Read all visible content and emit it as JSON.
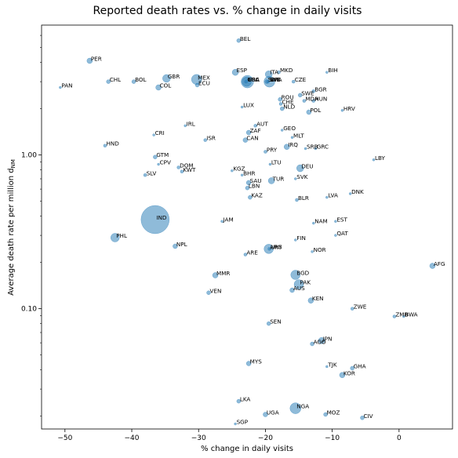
{
  "chart_data": {
    "type": "scatter",
    "title": "Reported death rates vs. % change in daily visits",
    "xlabel": "% change in daily visits",
    "ylabel": "Average death rate per million d_NM",
    "xscale": "linear",
    "yscale": "log",
    "xlim": [
      -53.5,
      8
    ],
    "ylim": [
      0.0165,
      7.0
    ],
    "xticks": [
      -50,
      -40,
      -30,
      -20,
      -10,
      0
    ],
    "xtick_labels": [
      "−50",
      "−40",
      "−30",
      "−20",
      "−10",
      "0"
    ],
    "yticks": [
      1.0,
      0.1
    ],
    "ytick_labels": [
      "1.00",
      "0.10"
    ],
    "grid": false,
    "marker_color": "#1f77b4",
    "marker_alpha": 0.5,
    "points": [
      {
        "label": "BEL",
        "x": -24.0,
        "y": 5.55,
        "size": 2.5
      },
      {
        "label": "PER",
        "x": -46.3,
        "y": 4.1,
        "size": 3.5
      },
      {
        "label": "BIH",
        "x": -10.8,
        "y": 3.45,
        "size": 1.5
      },
      {
        "label": "ESP",
        "x": -24.5,
        "y": 3.45,
        "size": 4
      },
      {
        "label": "ITA",
        "x": -19.5,
        "y": 3.35,
        "size": 4.5
      },
      {
        "label": "MKD",
        "x": -18.0,
        "y": 3.45,
        "size": 2
      },
      {
        "label": "GBR",
        "x": -34.8,
        "y": 3.15,
        "size": 5
      },
      {
        "label": "MEX",
        "x": -30.3,
        "y": 3.1,
        "size": 6.5
      },
      {
        "label": "CHL",
        "x": -43.5,
        "y": 3.0,
        "size": 2.5
      },
      {
        "label": "BOL",
        "x": -39.7,
        "y": 3.0,
        "size": 2.5
      },
      {
        "label": "FRA",
        "x": -22.7,
        "y": 3.0,
        "size": 8
      },
      {
        "label": "USA",
        "x": -22.8,
        "y": 3.0,
        "size": 6
      },
      {
        "label": "GRC",
        "x": -22.9,
        "y": 3.0,
        "size": 2
      },
      {
        "label": "SWE",
        "x": -19.8,
        "y": 3.0,
        "size": 2.5
      },
      {
        "label": "SYR",
        "x": -19.6,
        "y": 3.0,
        "size": 2
      },
      {
        "label": "BRA",
        "x": -19.4,
        "y": 3.0,
        "size": 7
      },
      {
        "label": "CZE",
        "x": -15.8,
        "y": 3.0,
        "size": 2
      },
      {
        "label": "ECU",
        "x": -30.2,
        "y": 2.85,
        "size": 2.5
      },
      {
        "label": "PAN",
        "x": -50.7,
        "y": 2.75,
        "size": 1.5
      },
      {
        "label": "COL",
        "x": -36.0,
        "y": 2.75,
        "size": 3.5
      },
      {
        "label": "BGR",
        "x": -12.8,
        "y": 2.6,
        "size": 2
      },
      {
        "label": "SWE",
        "x": -14.8,
        "y": 2.45,
        "size": 2.5
      },
      {
        "label": "ROU",
        "x": -17.8,
        "y": 2.3,
        "size": 2.5
      },
      {
        "label": "MDA",
        "x": -14.2,
        "y": 2.25,
        "size": 2
      },
      {
        "label": "HUN",
        "x": -12.8,
        "y": 2.25,
        "size": 2
      },
      {
        "label": "CHE",
        "x": -17.7,
        "y": 2.15,
        "size": 2
      },
      {
        "label": "LUX",
        "x": -23.5,
        "y": 2.05,
        "size": 1.5
      },
      {
        "label": "NLD",
        "x": -17.5,
        "y": 2.0,
        "size": 2.5
      },
      {
        "label": "POL",
        "x": -13.5,
        "y": 1.9,
        "size": 3
      },
      {
        "label": "HRV",
        "x": -8.5,
        "y": 1.95,
        "size": 1.5
      },
      {
        "label": "IRL",
        "x": -32.0,
        "y": 1.55,
        "size": 1.5
      },
      {
        "label": "AUT",
        "x": -21.5,
        "y": 1.55,
        "size": 2
      },
      {
        "label": "GEO",
        "x": -17.5,
        "y": 1.45,
        "size": 1.5
      },
      {
        "label": "ZAF",
        "x": -22.5,
        "y": 1.4,
        "size": 3
      },
      {
        "label": "CRI",
        "x": -36.7,
        "y": 1.35,
        "size": 1.5
      },
      {
        "label": "MLT",
        "x": -16.0,
        "y": 1.3,
        "size": 1.5
      },
      {
        "label": "ISR",
        "x": -29.0,
        "y": 1.25,
        "size": 2
      },
      {
        "label": "CAN",
        "x": -23.0,
        "y": 1.25,
        "size": 3
      },
      {
        "label": "HND",
        "x": -44.0,
        "y": 1.15,
        "size": 2
      },
      {
        "label": "IRQ",
        "x": -16.8,
        "y": 1.13,
        "size": 3.5
      },
      {
        "label": "SRB",
        "x": -14.0,
        "y": 1.1,
        "size": 1.5
      },
      {
        "label": "GRC",
        "x": -12.5,
        "y": 1.1,
        "size": 1.5
      },
      {
        "label": "PRY",
        "x": -20.0,
        "y": 1.05,
        "size": 2
      },
      {
        "label": "GTM",
        "x": -36.5,
        "y": 0.97,
        "size": 2.5
      },
      {
        "label": "LBY",
        "x": -3.8,
        "y": 0.93,
        "size": 1.5
      },
      {
        "label": "CPV",
        "x": -36.0,
        "y": 0.87,
        "size": 1.5
      },
      {
        "label": "DOM",
        "x": -33.0,
        "y": 0.83,
        "size": 2
      },
      {
        "label": "LTU",
        "x": -19.3,
        "y": 0.87,
        "size": 1.5
      },
      {
        "label": "DEU",
        "x": -14.8,
        "y": 0.82,
        "size": 4.5
      },
      {
        "label": "KWT",
        "x": -32.5,
        "y": 0.78,
        "size": 2
      },
      {
        "label": "KGZ",
        "x": -25.0,
        "y": 0.79,
        "size": 1.5
      },
      {
        "label": "BHR",
        "x": -23.5,
        "y": 0.74,
        "size": 1.5
      },
      {
        "label": "SLV",
        "x": -38.0,
        "y": 0.74,
        "size": 2
      },
      {
        "label": "SVK",
        "x": -15.5,
        "y": 0.7,
        "size": 1.5
      },
      {
        "label": "TUR",
        "x": -19.1,
        "y": 0.68,
        "size": 4
      },
      {
        "label": "SAU",
        "x": -22.5,
        "y": 0.66,
        "size": 3
      },
      {
        "label": "LBN",
        "x": -22.7,
        "y": 0.61,
        "size": 2.5
      },
      {
        "label": "DNK",
        "x": -7.3,
        "y": 0.56,
        "size": 1.5
      },
      {
        "label": "LVA",
        "x": -10.8,
        "y": 0.53,
        "size": 1.5
      },
      {
        "label": "KAZ",
        "x": -22.3,
        "y": 0.53,
        "size": 2.5
      },
      {
        "label": "BLR",
        "x": -15.3,
        "y": 0.51,
        "size": 2
      },
      {
        "label": "IND",
        "x": -36.5,
        "y": 0.38,
        "size": 18
      },
      {
        "label": "JAM",
        "x": -26.5,
        "y": 0.37,
        "size": 1.5
      },
      {
        "label": "EST",
        "x": -9.5,
        "y": 0.37,
        "size": 1.5
      },
      {
        "label": "NAM",
        "x": -12.8,
        "y": 0.36,
        "size": 1.5
      },
      {
        "label": "QAT",
        "x": -9.5,
        "y": 0.3,
        "size": 1.5
      },
      {
        "label": "PHL",
        "x": -42.5,
        "y": 0.29,
        "size": 5.5
      },
      {
        "label": "FIN",
        "x": -15.5,
        "y": 0.28,
        "size": 1.5
      },
      {
        "label": "NPL",
        "x": -33.5,
        "y": 0.255,
        "size": 3
      },
      {
        "label": "ARG",
        "x": -19.5,
        "y": 0.245,
        "size": 6
      },
      {
        "label": "URY",
        "x": -19.4,
        "y": 0.245,
        "size": 2
      },
      {
        "label": "NOR",
        "x": -13.0,
        "y": 0.235,
        "size": 1.5
      },
      {
        "label": "ARE",
        "x": -23.0,
        "y": 0.225,
        "size": 2
      },
      {
        "label": "AFG",
        "x": 5.0,
        "y": 0.19,
        "size": 3.5
      },
      {
        "label": "BGD",
        "x": -15.5,
        "y": 0.166,
        "size": 6
      },
      {
        "label": "MMR",
        "x": -27.5,
        "y": 0.165,
        "size": 3.5
      },
      {
        "label": "PAK",
        "x": -15.0,
        "y": 0.144,
        "size": 6
      },
      {
        "label": "AUS",
        "x": -16.0,
        "y": 0.132,
        "size": 3
      },
      {
        "label": "VEN",
        "x": -28.5,
        "y": 0.127,
        "size": 2.5
      },
      {
        "label": "KEN",
        "x": -13.2,
        "y": 0.113,
        "size": 3.5
      },
      {
        "label": "ZWE",
        "x": -7.0,
        "y": 0.1,
        "size": 2
      },
      {
        "label": "ZMB",
        "x": -0.7,
        "y": 0.089,
        "size": 2
      },
      {
        "label": "BWA",
        "x": 0.7,
        "y": 0.089,
        "size": 1.5
      },
      {
        "label": "SEN",
        "x": -19.5,
        "y": 0.08,
        "size": 2.5
      },
      {
        "label": "JPN",
        "x": -11.6,
        "y": 0.062,
        "size": 4
      },
      {
        "label": "AGO",
        "x": -13.0,
        "y": 0.059,
        "size": 2.5
      },
      {
        "label": "TJK",
        "x": -10.8,
        "y": 0.042,
        "size": 1.5
      },
      {
        "label": "GHA",
        "x": -7.0,
        "y": 0.041,
        "size": 2.5
      },
      {
        "label": "MYS",
        "x": -22.5,
        "y": 0.044,
        "size": 3
      },
      {
        "label": "KOR",
        "x": -8.5,
        "y": 0.037,
        "size": 3.5
      },
      {
        "label": "LKA",
        "x": -24.0,
        "y": 0.025,
        "size": 2.5
      },
      {
        "label": "NGA",
        "x": -15.5,
        "y": 0.0225,
        "size": 7
      },
      {
        "label": "UGA",
        "x": -20.0,
        "y": 0.0205,
        "size": 3
      },
      {
        "label": "MOZ",
        "x": -11.0,
        "y": 0.0205,
        "size": 2.5
      },
      {
        "label": "CIV",
        "x": -5.5,
        "y": 0.0195,
        "size": 2.5
      },
      {
        "label": "SGP",
        "x": -24.5,
        "y": 0.0178,
        "size": 1.5
      }
    ]
  }
}
